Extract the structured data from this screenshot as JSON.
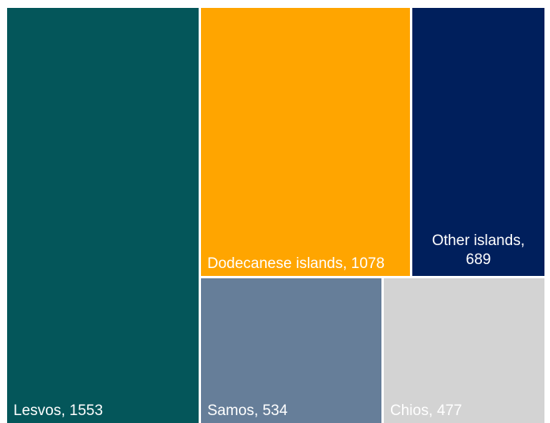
{
  "chart_data": {
    "type": "treemap",
    "title": "",
    "items": [
      {
        "name": "Lesvos",
        "value": 1553,
        "label": "Lesvos, 1553",
        "color": "#04565A"
      },
      {
        "name": "Dodecanese islands",
        "value": 1078,
        "label": "Dodecanese islands, 1078",
        "color": "#FFA500"
      },
      {
        "name": "Other islands",
        "value": 689,
        "label": "Other islands,\n689",
        "color": "#001F5C"
      },
      {
        "name": "Samos",
        "value": 534,
        "label": "Samos, 534",
        "color": "#667E99"
      },
      {
        "name": "Chios",
        "value": 477,
        "label": "Chios, 477",
        "color": "#D3D3D3"
      }
    ]
  }
}
